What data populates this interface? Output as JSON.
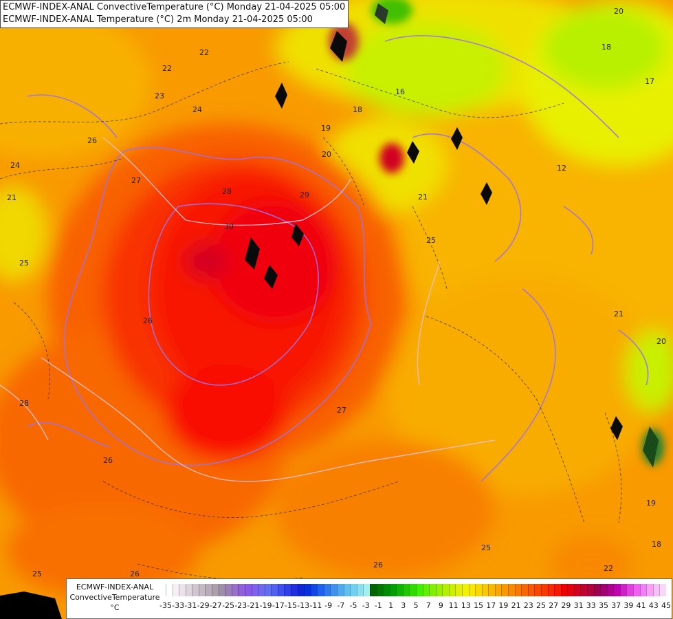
{
  "titles": {
    "line1": "ECMWF-INDEX-ANAL ConvectiveTemperature (°C) Monday 21-04-2025 05:00",
    "line2": "ECMWF-INDEX-ANAL Temperature (°C) 2m Monday 21-04-2025 05:00"
  },
  "legend": {
    "line1": "ECMWF-INDEX-ANAL",
    "line2": "ConvectiveTemperature",
    "unit": "°C",
    "ticks": [
      "-35",
      "-33",
      "-31",
      "-29",
      "-27",
      "-25",
      "-23",
      "-21",
      "-19",
      "-17",
      "-15",
      "-13",
      "-11",
      "-9",
      "-7",
      "-5",
      "-3",
      "-1",
      "1",
      "3",
      "5",
      "7",
      "9",
      "11",
      "13",
      "15",
      "17",
      "19",
      "21",
      "23",
      "25",
      "27",
      "29",
      "31",
      "33",
      "35",
      "37",
      "39",
      "41",
      "43",
      "45"
    ],
    "colors": [
      "#ffffff",
      "#f6f0f6",
      "#ebe3eb",
      "#ddd4dd",
      "#d0c6d0",
      "#c4b9c4",
      "#b8acb8",
      "#ab9fab",
      "#a08fa8",
      "#9c7fb8",
      "#9870c8",
      "#9060d8",
      "#8858e8",
      "#8060f0",
      "#7068f0",
      "#6070f0",
      "#5060f0",
      "#4050f0",
      "#3040e8",
      "#2030e0",
      "#1028d8",
      "#0830e0",
      "#1048e8",
      "#2060f0",
      "#3078f0",
      "#4090f0",
      "#50a8f0",
      "#60c0f0",
      "#70d0f0",
      "#88e0f0",
      "#a0f0f0",
      "#006400",
      "#007800",
      "#008c00",
      "#00a000",
      "#10b400",
      "#20c800",
      "#30dc00",
      "#40f000",
      "#60f000",
      "#80f000",
      "#98f000",
      "#b0f000",
      "#c8f000",
      "#e0f000",
      "#f0f000",
      "#f8e800",
      "#f8d800",
      "#f8c800",
      "#f8b800",
      "#f8a800",
      "#f89800",
      "#f88800",
      "#f87800",
      "#f86800",
      "#f85800",
      "#f84800",
      "#f83800",
      "#f82800",
      "#f81800",
      "#f00000",
      "#e00010",
      "#d00020",
      "#c00030",
      "#b00040",
      "#a00050",
      "#a00070",
      "#b00090",
      "#c000b0",
      "#d020c8",
      "#e040e0",
      "#f060f0",
      "#f080f8",
      "#f8a0f8",
      "#f8c0f8",
      "#f8d8f8"
    ]
  },
  "map_labels": [
    "22",
    "22",
    "23",
    "24",
    "26",
    "24",
    "21",
    "27",
    "28",
    "29",
    "30",
    "25",
    "26",
    "25",
    "26",
    "26",
    "27",
    "25",
    "26",
    "28",
    "25",
    "21",
    "18",
    "16",
    "19",
    "20",
    "18",
    "17",
    "12",
    "21",
    "20",
    "19",
    "18",
    "22",
    "20"
  ],
  "scale_colors": {
    "hot_core": "#ff1800",
    "warm": "#f85800",
    "orange": "#f89a00",
    "light_orange": "#f8b800",
    "yellow": "#f0e800",
    "lime": "#c8f000",
    "green": "#40e000",
    "contour_purple": "#a070e8",
    "border_pink": "#f0c0d0"
  }
}
